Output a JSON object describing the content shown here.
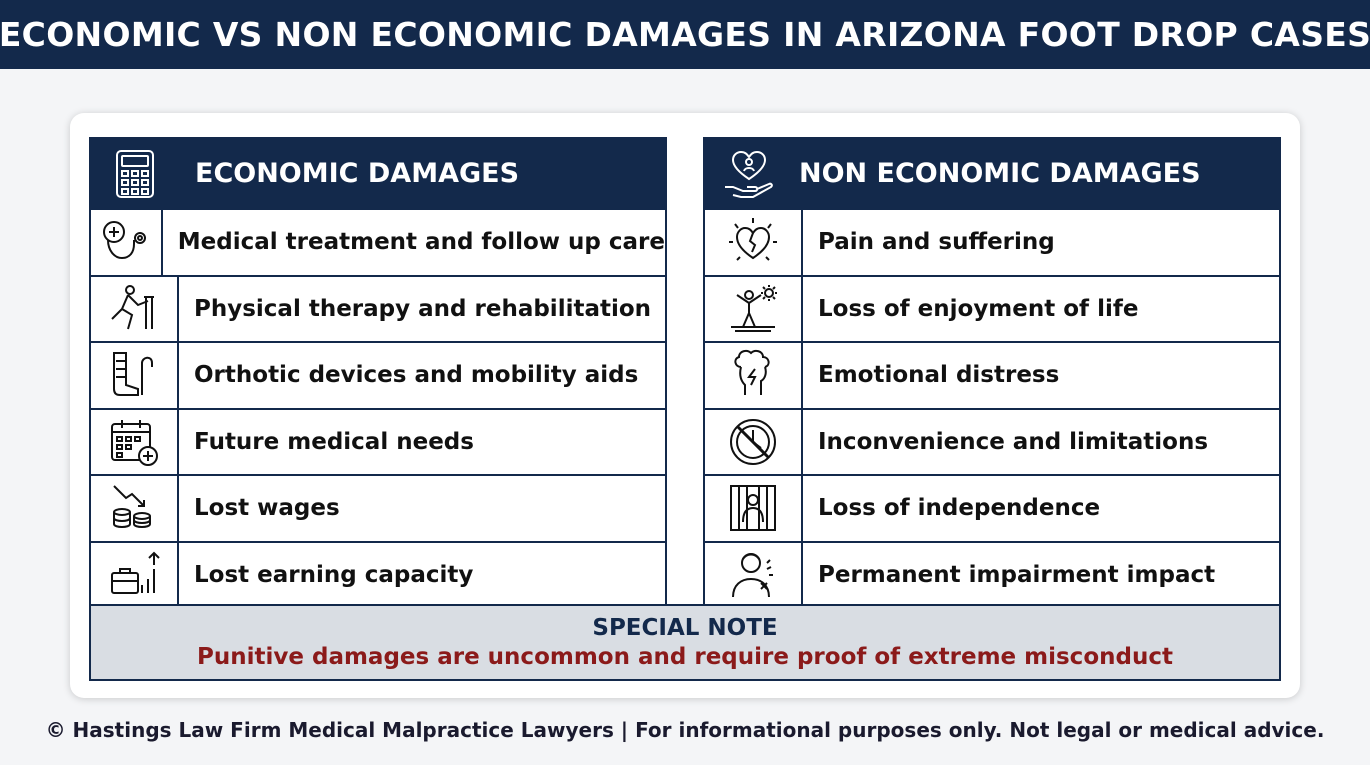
{
  "header": {
    "title": "ECONOMIC VS NON ECONOMIC DAMAGES IN ARIZONA FOOT DROP CASES"
  },
  "economic": {
    "title": "ECONOMIC DAMAGES",
    "icon": "calculator-icon",
    "items": [
      {
        "label": "Medical treatment and follow up care",
        "icon": "stethoscope-icon"
      },
      {
        "label": "Physical therapy and rehabilitation",
        "icon": "exercise-icon"
      },
      {
        "label": "Orthotic devices and mobility aids",
        "icon": "brace-cane-icon"
      },
      {
        "label": "Future medical needs",
        "icon": "calendar-plus-icon"
      },
      {
        "label": "Lost wages",
        "icon": "coins-decline-icon"
      },
      {
        "label": "Lost earning capacity",
        "icon": "briefcase-growth-icon"
      }
    ]
  },
  "noneconomic": {
    "title": "NON ECONOMIC DAMAGES",
    "icon": "heart-hand-icon",
    "items": [
      {
        "label": "Pain and suffering",
        "icon": "broken-heart-icon"
      },
      {
        "label": "Loss of enjoyment of life",
        "icon": "person-sun-icon"
      },
      {
        "label": "Emotional distress",
        "icon": "head-storm-icon"
      },
      {
        "label": "Inconvenience and limitations",
        "icon": "clock-prohibited-icon"
      },
      {
        "label": "Loss of independence",
        "icon": "person-bars-icon"
      },
      {
        "label": "Permanent impairment impact",
        "icon": "person-injury-icon"
      }
    ]
  },
  "note": {
    "title": "SPECIAL NOTE",
    "body": "Punitive damages are uncommon and require proof of extreme misconduct"
  },
  "footer": {
    "text": "© Hastings Law Firm Medical Malpractice Lawyers | For informational purposes only. Not legal or medical advice."
  },
  "colors": {
    "navy": "#13294b",
    "note_bg": "#d9dde3",
    "note_red": "#8b1a1a"
  }
}
